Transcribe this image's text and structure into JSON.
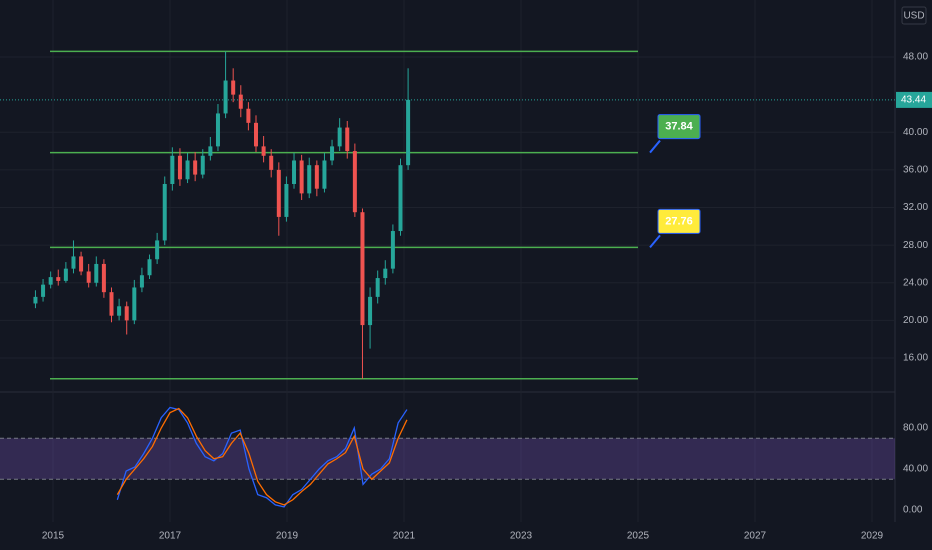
{
  "chart_data": [
    {
      "type": "candlestick",
      "currency": "USD",
      "x": [
        2014.7,
        2014.83,
        2014.96,
        2015.09,
        2015.22,
        2015.35,
        2015.48,
        2015.61,
        2015.74,
        2015.87,
        2016.0,
        2016.13,
        2016.26,
        2016.39,
        2016.52,
        2016.65,
        2016.78,
        2016.91,
        2017.04,
        2017.17,
        2017.3,
        2017.43,
        2017.56,
        2017.69,
        2017.82,
        2017.95,
        2018.08,
        2018.21,
        2018.34,
        2018.47,
        2018.6,
        2018.73,
        2018.86,
        2018.99,
        2019.12,
        2019.25,
        2019.38,
        2019.51,
        2019.64,
        2019.77,
        2019.9,
        2020.03,
        2020.16,
        2020.29,
        2020.42,
        2020.55,
        2020.68,
        2020.81,
        2020.94,
        2021.07
      ],
      "open": [
        21.8,
        22.5,
        23.8,
        24.6,
        24.2,
        25.5,
        26.8,
        25.2,
        24.0,
        26.0,
        23.0,
        20.5,
        21.5,
        20.0,
        23.5,
        24.8,
        26.5,
        28.5,
        34.5,
        37.5,
        35.0,
        37.0,
        35.5,
        37.5,
        38.5,
        42.0,
        45.5,
        44.0,
        42.5,
        41.0,
        38.5,
        37.5,
        36.0,
        31.0,
        34.5,
        37.0,
        33.5,
        36.5,
        34.0,
        37.0,
        38.5,
        40.5,
        38.0,
        31.5,
        19.5,
        22.5,
        24.5,
        25.5,
        29.5,
        36.5
      ],
      "high": [
        23.2,
        24.4,
        25.2,
        25.4,
        26.2,
        28.5,
        27.3,
        26.0,
        26.8,
        26.5,
        23.5,
        22.3,
        22.0,
        24.3,
        25.6,
        27.0,
        29.3,
        35.3,
        38.4,
        38.3,
        37.8,
        37.9,
        38.2,
        39.5,
        43.0,
        48.6,
        46.8,
        45.0,
        43.2,
        41.8,
        39.6,
        38.2,
        36.8,
        35.3,
        37.8,
        37.6,
        37.3,
        37.0,
        37.8,
        39.2,
        41.5,
        41.2,
        38.8,
        31.9,
        23.5,
        25.3,
        26.4,
        30.2,
        37.2,
        46.8
      ],
      "low": [
        21.3,
        22.0,
        23.4,
        23.7,
        24.0,
        25.0,
        24.8,
        23.5,
        23.6,
        22.4,
        19.8,
        20.0,
        18.5,
        19.6,
        23.0,
        24.4,
        26.0,
        28.0,
        33.8,
        34.3,
        34.6,
        34.8,
        35.1,
        37.0,
        38.0,
        41.5,
        43.2,
        41.6,
        40.2,
        37.9,
        36.8,
        35.2,
        29.0,
        30.5,
        34.0,
        32.8,
        33.0,
        33.2,
        33.6,
        36.5,
        38.0,
        37.2,
        31.0,
        13.8,
        17.0,
        21.8,
        23.8,
        25.0,
        29.0,
        36.0
      ],
      "close": [
        22.5,
        23.8,
        24.6,
        24.2,
        25.5,
        26.8,
        25.2,
        24.0,
        26.0,
        23.0,
        20.5,
        21.5,
        20.0,
        23.5,
        24.8,
        26.5,
        28.5,
        34.5,
        37.5,
        35.0,
        37.0,
        35.5,
        37.5,
        38.5,
        42.0,
        45.5,
        44.0,
        42.5,
        41.0,
        38.5,
        37.5,
        36.0,
        31.0,
        34.5,
        37.0,
        33.5,
        36.5,
        34.0,
        37.0,
        38.5,
        40.5,
        38.0,
        31.5,
        19.5,
        22.5,
        24.5,
        25.5,
        29.5,
        36.5,
        43.44
      ],
      "up_color": "#26a69a",
      "down_color": "#ef5350",
      "last_price": 43.44,
      "levels": [
        {
          "value": 48.6,
          "color": "#4caf50"
        },
        {
          "value": 37.84,
          "color": "#4caf50",
          "callout": "#4caf50"
        },
        {
          "value": 27.76,
          "color": "#4caf50",
          "callout": "#ffeb3b"
        },
        {
          "value": 13.8,
          "color": "#4caf50"
        }
      ],
      "xlim": [
        2014.094,
        2029.393
      ],
      "xticks": [
        2015,
        2017,
        2019,
        2021,
        2023,
        2025,
        2027,
        2029
      ],
      "ylim": [
        12.6,
        54.06
      ],
      "yticks": [
        {
          "value": 16,
          "label": "16.00"
        },
        {
          "value": 20,
          "label": "20.00"
        },
        {
          "value": 24,
          "label": "24.00"
        },
        {
          "value": 28,
          "label": "28.00"
        },
        {
          "value": 32,
          "label": "32.00"
        },
        {
          "value": 36,
          "label": "36.00"
        },
        {
          "value": 40,
          "label": "40.00"
        },
        {
          "value": 48,
          "label": "48.00"
        }
      ],
      "grid": true
    },
    {
      "type": "line",
      "x": [
        2016.1,
        2016.25,
        2016.4,
        2016.55,
        2016.7,
        2016.85,
        2017.0,
        2017.15,
        2017.3,
        2017.45,
        2017.6,
        2017.75,
        2017.9,
        2018.05,
        2018.2,
        2018.35,
        2018.5,
        2018.65,
        2018.8,
        2018.95,
        2019.1,
        2019.25,
        2019.4,
        2019.55,
        2019.7,
        2019.85,
        2020.0,
        2020.15,
        2020.3,
        2020.45,
        2020.6,
        2020.75,
        2020.9,
        2021.05
      ],
      "series": [
        {
          "color": "#2962ff",
          "values": [
            10,
            38,
            42,
            55,
            70,
            90,
            100,
            98,
            85,
            65,
            52,
            48,
            55,
            75,
            78,
            40,
            15,
            12,
            5,
            3,
            15,
            20,
            30,
            40,
            48,
            52,
            60,
            80,
            25,
            35,
            40,
            50,
            85,
            98
          ]
        },
        {
          "color": "#ff6d00",
          "values": [
            15,
            30,
            40,
            50,
            62,
            80,
            95,
            99,
            90,
            72,
            58,
            50,
            52,
            65,
            75,
            55,
            28,
            15,
            8,
            5,
            10,
            18,
            25,
            35,
            45,
            50,
            56,
            72,
            40,
            30,
            38,
            46,
            70,
            88
          ]
        }
      ],
      "band": [
        30,
        70
      ],
      "band_color": "#7e57c2",
      "ylim": [
        -11.7,
        112.2
      ],
      "yticks": [
        {
          "value": 0,
          "label": "0.00"
        },
        {
          "value": 40,
          "label": "40.00"
        },
        {
          "value": 80,
          "label": "80.00"
        }
      ]
    }
  ]
}
